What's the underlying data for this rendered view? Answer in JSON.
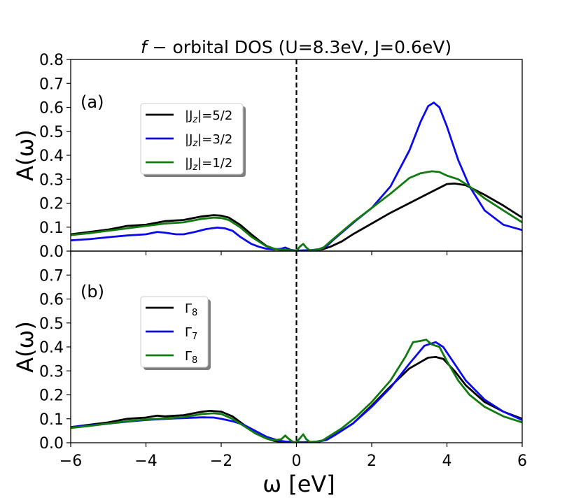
{
  "chart_data": {
    "title_prefix": "f",
    "title_rest": " − orbital DOS (U=8.3eV, J=0.6eV)",
    "xlabel": "ω [eV]",
    "xlim": [
      -6,
      6
    ],
    "xticks": [
      -6,
      -4,
      -2,
      0,
      2,
      4,
      6
    ],
    "xtick_labels": [
      "−6",
      "−4",
      "−2",
      "0",
      "2",
      "4",
      "6"
    ],
    "vline_x": 0,
    "panels": [
      {
        "type": "line",
        "tag": "(a)",
        "ylabel": "A(ω)",
        "ylim": [
          0,
          0.8
        ],
        "yticks": [
          "0.0",
          "0.1",
          "0.2",
          "0.3",
          "0.4",
          "0.5",
          "0.6",
          "0.7",
          "0.8"
        ],
        "series": [
          {
            "name_base": "|J",
            "name_sub": "z",
            "name_rest": "|=5/2",
            "color": "#000000",
            "points": [
              [
                -6,
                0.07
              ],
              [
                -5.5,
                0.08
              ],
              [
                -5,
                0.09
              ],
              [
                -4.5,
                0.105
              ],
              [
                -4,
                0.11
              ],
              [
                -3.5,
                0.125
              ],
              [
                -3,
                0.13
              ],
              [
                -2.5,
                0.145
              ],
              [
                -2.2,
                0.15
              ],
              [
                -2,
                0.148
              ],
              [
                -1.8,
                0.14
              ],
              [
                -1.5,
                0.11
              ],
              [
                -1.2,
                0.07
              ],
              [
                -1,
                0.045
              ],
              [
                -0.8,
                0.022
              ],
              [
                -0.6,
                0.01
              ],
              [
                -0.4,
                0.005
              ],
              [
                -0.3,
                0.003
              ],
              [
                -0.2,
                0.002
              ],
              [
                0,
                0
              ],
              [
                0.15,
                0.002
              ],
              [
                0.3,
                0.003
              ],
              [
                0.5,
                0.004
              ],
              [
                0.7,
                0.008
              ],
              [
                0.9,
                0.018
              ],
              [
                1.2,
                0.04
              ],
              [
                1.5,
                0.07
              ],
              [
                2,
                0.115
              ],
              [
                2.5,
                0.16
              ],
              [
                3,
                0.2
              ],
              [
                3.5,
                0.24
              ],
              [
                4,
                0.28
              ],
              [
                4.2,
                0.282
              ],
              [
                4.5,
                0.275
              ],
              [
                5,
                0.235
              ],
              [
                5.5,
                0.19
              ],
              [
                6,
                0.14
              ]
            ]
          },
          {
            "name_base": "|J",
            "name_sub": "z",
            "name_rest": "|=3/2",
            "color": "#0a0aeb",
            "points": [
              [
                -6,
                0.045
              ],
              [
                -5.5,
                0.05
              ],
              [
                -5,
                0.058
              ],
              [
                -4.5,
                0.065
              ],
              [
                -4,
                0.07
              ],
              [
                -3.7,
                0.08
              ],
              [
                -3.5,
                0.077
              ],
              [
                -3.2,
                0.07
              ],
              [
                -3,
                0.07
              ],
              [
                -2.7,
                0.08
              ],
              [
                -2.4,
                0.092
              ],
              [
                -2.1,
                0.098
              ],
              [
                -1.9,
                0.095
              ],
              [
                -1.7,
                0.085
              ],
              [
                -1.5,
                0.06
              ],
              [
                -1.2,
                0.03
              ],
              [
                -1,
                0.018
              ],
              [
                -0.8,
                0.01
              ],
              [
                -0.6,
                0.007
              ],
              [
                -0.4,
                0.01
              ],
              [
                -0.3,
                0.015
              ],
              [
                -0.15,
                0.005
              ],
              [
                0,
                0.002
              ],
              [
                0.2,
                0.003
              ],
              [
                0.4,
                0.004
              ],
              [
                0.6,
                0.008
              ],
              [
                0.8,
                0.02
              ],
              [
                1,
                0.05
              ],
              [
                1.3,
                0.09
              ],
              [
                1.6,
                0.13
              ],
              [
                2,
                0.18
              ],
              [
                2.5,
                0.27
              ],
              [
                3,
                0.42
              ],
              [
                3.3,
                0.54
              ],
              [
                3.5,
                0.605
              ],
              [
                3.65,
                0.62
              ],
              [
                3.8,
                0.6
              ],
              [
                4,
                0.52
              ],
              [
                4.3,
                0.38
              ],
              [
                4.6,
                0.27
              ],
              [
                5,
                0.17
              ],
              [
                5.5,
                0.11
              ],
              [
                6,
                0.088
              ]
            ]
          },
          {
            "name_base": "|J",
            "name_sub": "z",
            "name_rest": "|=1/2",
            "color": "#117a11",
            "points": [
              [
                -6,
                0.067
              ],
              [
                -5.5,
                0.075
              ],
              [
                -5,
                0.085
              ],
              [
                -4.5,
                0.095
              ],
              [
                -4,
                0.105
              ],
              [
                -3.5,
                0.115
              ],
              [
                -3,
                0.12
              ],
              [
                -2.5,
                0.135
              ],
              [
                -2.2,
                0.14
              ],
              [
                -2,
                0.138
              ],
              [
                -1.8,
                0.13
              ],
              [
                -1.5,
                0.1
              ],
              [
                -1.2,
                0.06
              ],
              [
                -1,
                0.04
              ],
              [
                -0.8,
                0.02
              ],
              [
                -0.6,
                0.01
              ],
              [
                -0.4,
                0.006
              ],
              [
                -0.2,
                0.004
              ],
              [
                0,
                0.002
              ],
              [
                0.1,
                0.02
              ],
              [
                0.18,
                0.03
              ],
              [
                0.26,
                0.015
              ],
              [
                0.35,
                0.004
              ],
              [
                0.5,
                0.004
              ],
              [
                0.7,
                0.012
              ],
              [
                0.9,
                0.04
              ],
              [
                1.2,
                0.08
              ],
              [
                1.5,
                0.12
              ],
              [
                2,
                0.18
              ],
              [
                2.5,
                0.24
              ],
              [
                3,
                0.305
              ],
              [
                3.3,
                0.325
              ],
              [
                3.6,
                0.333
              ],
              [
                3.8,
                0.33
              ],
              [
                4,
                0.315
              ],
              [
                4.3,
                0.3
              ],
              [
                4.6,
                0.27
              ],
              [
                5,
                0.22
              ],
              [
                5.5,
                0.17
              ],
              [
                6,
                0.12
              ]
            ]
          }
        ]
      },
      {
        "type": "line",
        "tag": "(b)",
        "ylabel": "A(ω)",
        "ylim": [
          0,
          0.8
        ],
        "yticks": [
          "0.0",
          "0.1",
          "0.2",
          "0.3",
          "0.4",
          "0.5",
          "0.6",
          "0.7"
        ],
        "series": [
          {
            "name_base": "Γ",
            "name_sub": "8",
            "name_rest": "",
            "color": "#000000",
            "points": [
              [
                -6,
                0.065
              ],
              [
                -5.5,
                0.075
              ],
              [
                -5,
                0.085
              ],
              [
                -4.5,
                0.1
              ],
              [
                -4,
                0.105
              ],
              [
                -3.7,
                0.113
              ],
              [
                -3.5,
                0.11
              ],
              [
                -3,
                0.115
              ],
              [
                -2.5,
                0.13
              ],
              [
                -2.3,
                0.133
              ],
              [
                -2,
                0.13
              ],
              [
                -1.7,
                0.11
              ],
              [
                -1.4,
                0.075
              ],
              [
                -1.1,
                0.04
              ],
              [
                -0.8,
                0.018
              ],
              [
                -0.6,
                0.008
              ],
              [
                -0.4,
                0.004
              ],
              [
                -0.2,
                0.003
              ],
              [
                0,
                0
              ],
              [
                0.2,
                0.002
              ],
              [
                0.4,
                0.003
              ],
              [
                0.6,
                0.005
              ],
              [
                0.8,
                0.012
              ],
              [
                1,
                0.03
              ],
              [
                1.5,
                0.08
              ],
              [
                2,
                0.155
              ],
              [
                2.5,
                0.235
              ],
              [
                3,
                0.31
              ],
              [
                3.5,
                0.355
              ],
              [
                3.7,
                0.358
              ],
              [
                3.9,
                0.35
              ],
              [
                4.2,
                0.3
              ],
              [
                4.5,
                0.24
              ],
              [
                5,
                0.17
              ],
              [
                5.5,
                0.13
              ],
              [
                6,
                0.1
              ]
            ]
          },
          {
            "name_base": "Γ",
            "name_sub": "7",
            "name_rest": "",
            "color": "#0a0aeb",
            "points": [
              [
                -6,
                0.065
              ],
              [
                -5.5,
                0.072
              ],
              [
                -5,
                0.08
              ],
              [
                -4.5,
                0.088
              ],
              [
                -4,
                0.095
              ],
              [
                -3.5,
                0.1
              ],
              [
                -3,
                0.103
              ],
              [
                -2.5,
                0.106
              ],
              [
                -2.2,
                0.105
              ],
              [
                -2,
                0.1
              ],
              [
                -1.7,
                0.09
              ],
              [
                -1.4,
                0.075
              ],
              [
                -1.1,
                0.05
              ],
              [
                -0.8,
                0.025
              ],
              [
                -0.5,
                0.01
              ],
              [
                -0.3,
                0.005
              ],
              [
                0,
                0.002
              ],
              [
                0.3,
                0.002
              ],
              [
                0.6,
                0.005
              ],
              [
                0.8,
                0.012
              ],
              [
                1,
                0.03
              ],
              [
                1.5,
                0.08
              ],
              [
                2,
                0.15
              ],
              [
                2.5,
                0.23
              ],
              [
                3,
                0.33
              ],
              [
                3.4,
                0.405
              ],
              [
                3.7,
                0.42
              ],
              [
                3.9,
                0.4
              ],
              [
                4.2,
                0.33
              ],
              [
                4.5,
                0.26
              ],
              [
                5,
                0.18
              ],
              [
                5.5,
                0.13
              ],
              [
                6,
                0.095
              ]
            ]
          },
          {
            "name_base": "Γ",
            "name_sub": "8",
            "name_rest": "",
            "color": "#117a11",
            "points": [
              [
                -6,
                0.062
              ],
              [
                -5.5,
                0.07
              ],
              [
                -5,
                0.08
              ],
              [
                -4.5,
                0.09
              ],
              [
                -4,
                0.097
              ],
              [
                -3.5,
                0.102
              ],
              [
                -3,
                0.107
              ],
              [
                -2.5,
                0.12
              ],
              [
                -2.2,
                0.123
              ],
              [
                -2,
                0.12
              ],
              [
                -1.7,
                0.1
              ],
              [
                -1.4,
                0.07
              ],
              [
                -1.1,
                0.04
              ],
              [
                -0.8,
                0.018
              ],
              [
                -0.6,
                0.01
              ],
              [
                -0.4,
                0.015
              ],
              [
                -0.3,
                0.03
              ],
              [
                -0.22,
                0.018
              ],
              [
                -0.1,
                0.004
              ],
              [
                0,
                0.002
              ],
              [
                0.1,
                0.02
              ],
              [
                0.18,
                0.035
              ],
              [
                0.26,
                0.015
              ],
              [
                0.35,
                0.004
              ],
              [
                0.5,
                0.004
              ],
              [
                0.7,
                0.01
              ],
              [
                0.9,
                0.03
              ],
              [
                1.2,
                0.06
              ],
              [
                1.6,
                0.11
              ],
              [
                2,
                0.17
              ],
              [
                2.5,
                0.26
              ],
              [
                2.9,
                0.36
              ],
              [
                3.1,
                0.42
              ],
              [
                3.3,
                0.425
              ],
              [
                3.45,
                0.43
              ],
              [
                3.6,
                0.41
              ],
              [
                3.8,
                0.4
              ],
              [
                4,
                0.34
              ],
              [
                4.3,
                0.26
              ],
              [
                4.6,
                0.2
              ],
              [
                5,
                0.15
              ],
              [
                5.5,
                0.11
              ],
              [
                6,
                0.085
              ]
            ]
          }
        ]
      }
    ]
  }
}
